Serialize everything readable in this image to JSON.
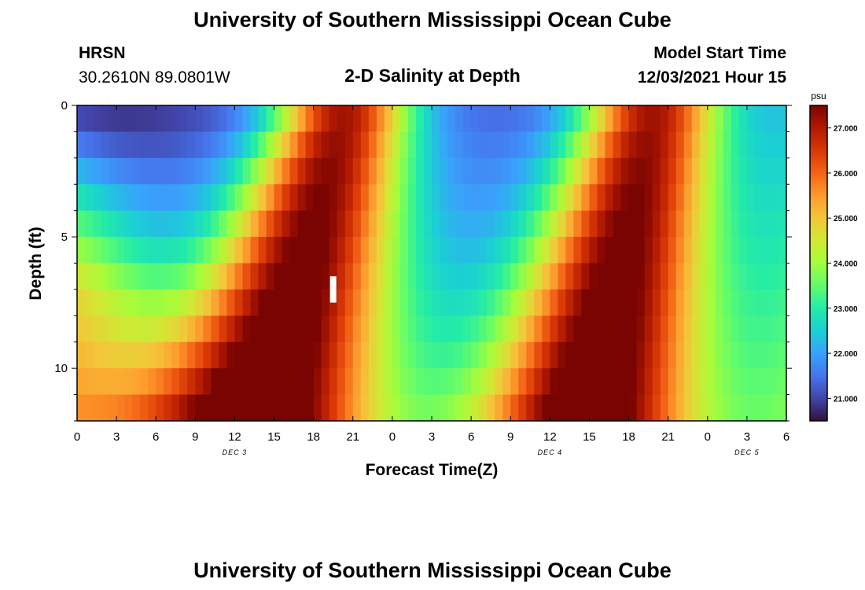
{
  "header": {
    "title_top": "University of Southern Mississippi Ocean Cube",
    "station_id": "HRSN",
    "coordinates": "30.2610N  89.0801W",
    "plot_title": "2-D Salinity at Depth",
    "model_start_label": "Model Start Time",
    "model_start_value": "12/03/2021 Hour 15",
    "title_bottom": "University of Southern Mississippi Ocean Cube"
  },
  "colors": {
    "scale": [
      "#30123b",
      "#4145ab",
      "#4675ed",
      "#39a2fc",
      "#1bcfd4",
      "#24eca6",
      "#61fc6c",
      "#a4fc3b",
      "#d1e834",
      "#f3c63a",
      "#fe9b2d",
      "#f36315",
      "#d93806",
      "#b11901",
      "#7a0402"
    ]
  },
  "chart_data": {
    "type": "heatmap",
    "xlabel": "Forecast Time(Z)",
    "ylabel": "Depth (ft)",
    "x_tick_labels": [
      "0",
      "3",
      "6",
      "9",
      "12",
      "15",
      "18",
      "21",
      "0",
      "3",
      "6",
      "9",
      "12",
      "15",
      "18",
      "21",
      "0",
      "3",
      "6"
    ],
    "x_range_hours": [
      0,
      54
    ],
    "date_labels": [
      {
        "label": "DEC 3",
        "hour": 12
      },
      {
        "label": "DEC 4",
        "hour": 36
      },
      {
        "label": "DEC 5",
        "hour": 51
      }
    ],
    "y_tick_labels": [
      {
        "label": "0",
        "depth": 0
      },
      {
        "label": "5",
        "depth": 5
      },
      {
        "label": "10",
        "depth": 10
      }
    ],
    "depth_range_ft": [
      0,
      12
    ],
    "colorbar": {
      "unit": "psu",
      "min": 20.5,
      "max": 27.5,
      "tick_labels": [
        "27.000",
        "26.000",
        "25.000",
        "24.000",
        "23.000",
        "22.000",
        "21.000"
      ],
      "tick_values": [
        27,
        26,
        25,
        24,
        23,
        22,
        21
      ]
    },
    "marker": {
      "hour": 19.5,
      "depth_from": 6.5,
      "depth_to": 7.5
    }
  }
}
